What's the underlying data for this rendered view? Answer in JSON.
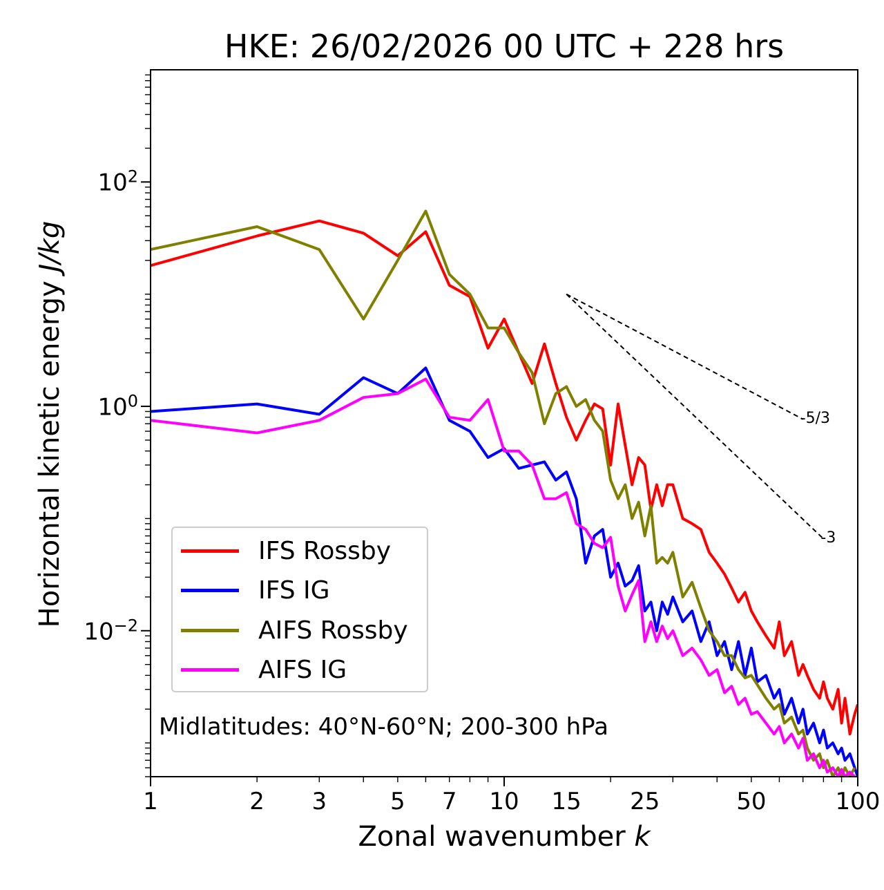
{
  "chart_data": {
    "type": "line",
    "title": "HKE: 26/02/2026 00 UTC + 228 hrs",
    "xlabel": "Zonal wavenumber",
    "xlabel_var": "k",
    "ylabel": "Horizontal kinetic energy",
    "ylabel_unit": "J/kg",
    "xscale": "log",
    "yscale": "log",
    "xlim": [
      1,
      100
    ],
    "ylim": [
      0.0005,
      1000
    ],
    "x_ticks": [
      1,
      2,
      3,
      5,
      7,
      10,
      15,
      25,
      50,
      100
    ],
    "x_tick_labels": [
      "1",
      "2",
      "3",
      "5",
      "7",
      "10",
      "15",
      "25",
      "50",
      "100"
    ],
    "y_ticks": [
      0.01,
      1,
      100
    ],
    "y_tick_labels": [
      {
        "base": "10",
        "exp": "−2"
      },
      {
        "base": "10",
        "exp": "0"
      },
      {
        "base": "10",
        "exp": "2"
      }
    ],
    "annotation": "Midlatitudes: 40°N-60°N; 200-300 hPa",
    "legend_position": "lower-left",
    "reference_slopes": [
      {
        "label": "-5/3",
        "slope": -1.6667,
        "x_start": 15,
        "y_start": 10,
        "x_end": 70
      },
      {
        "label": "-3",
        "slope": -3,
        "x_start": 15,
        "y_start": 10,
        "x_end": 80
      }
    ],
    "series": [
      {
        "name": "IFS Rossby",
        "color": "#ff0000",
        "x": [
          1,
          2,
          3,
          4,
          5,
          6,
          7,
          8,
          9,
          10,
          12,
          13,
          14,
          15,
          16,
          17,
          18,
          19,
          20,
          21,
          22,
          23,
          24,
          25,
          26,
          27,
          28,
          29,
          30,
          32,
          34,
          36,
          38,
          40,
          42,
          44,
          46,
          48,
          50,
          52,
          55,
          58,
          60,
          62,
          65,
          68,
          70,
          72,
          75,
          78,
          80,
          82,
          85,
          88,
          90,
          92,
          95,
          98,
          100
        ],
        "y": [
          18,
          33,
          45,
          35,
          22,
          36,
          12,
          9.5,
          3.3,
          6,
          1.6,
          3.6,
          1.6,
          0.8,
          0.5,
          0.75,
          1.05,
          0.95,
          0.3,
          1.05,
          0.45,
          0.2,
          0.35,
          0.3,
          0.12,
          0.2,
          0.13,
          0.2,
          0.2,
          0.1,
          0.09,
          0.08,
          0.05,
          0.04,
          0.032,
          0.024,
          0.018,
          0.022,
          0.015,
          0.012,
          0.009,
          0.007,
          0.012,
          0.006,
          0.008,
          0.004,
          0.005,
          0.004,
          0.003,
          0.0025,
          0.0035,
          0.0025,
          0.002,
          0.003,
          0.0015,
          0.0025,
          0.0012,
          0.0018,
          0.0022
        ]
      },
      {
        "name": "IFS IG",
        "color": "#0000ff",
        "x": [
          1,
          2,
          3,
          4,
          5,
          6,
          7,
          8,
          9,
          10,
          11,
          12,
          13,
          14,
          15,
          16,
          17,
          18,
          19,
          20,
          21,
          22,
          23,
          24,
          25,
          26,
          27,
          28,
          29,
          30,
          32,
          34,
          36,
          38,
          40,
          42,
          44,
          46,
          48,
          50,
          52,
          55,
          58,
          60,
          62,
          65,
          68,
          70,
          72,
          75,
          78,
          80,
          82,
          85,
          88,
          90,
          92,
          95,
          98,
          100
        ],
        "y": [
          0.9,
          1.05,
          0.85,
          1.8,
          1.3,
          2.2,
          0.75,
          0.6,
          0.35,
          0.42,
          0.28,
          0.3,
          0.32,
          0.22,
          0.26,
          0.15,
          0.04,
          0.07,
          0.08,
          0.03,
          0.04,
          0.025,
          0.028,
          0.038,
          0.015,
          0.018,
          0.01,
          0.018,
          0.014,
          0.02,
          0.012,
          0.015,
          0.008,
          0.012,
          0.006,
          0.008,
          0.0045,
          0.008,
          0.004,
          0.007,
          0.0035,
          0.004,
          0.0025,
          0.003,
          0.0018,
          0.0025,
          0.0015,
          0.002,
          0.0012,
          0.0015,
          0.001,
          0.0013,
          0.0009,
          0.001,
          0.0008,
          0.0009,
          0.0007,
          0.0008,
          0.0006,
          0.0005
        ]
      },
      {
        "name": "AIFS Rossby",
        "color": "#808000",
        "x": [
          1,
          2,
          3,
          4,
          5,
          6,
          7,
          8,
          9,
          10,
          11,
          12,
          13,
          14,
          15,
          16,
          17,
          18,
          19,
          20,
          21,
          22,
          23,
          24,
          25,
          26,
          27,
          28,
          29,
          30,
          32,
          34,
          36,
          38,
          40,
          42,
          44,
          46,
          48,
          50,
          52,
          55,
          58,
          60,
          62,
          65,
          68,
          70,
          72,
          75,
          78,
          80,
          82,
          85,
          88,
          90,
          92,
          95,
          98
        ],
        "y": [
          25,
          40,
          25,
          6,
          20,
          55,
          15,
          10,
          5,
          5,
          3,
          2,
          0.7,
          1.3,
          1.5,
          1.0,
          1.15,
          0.75,
          0.6,
          0.22,
          0.15,
          0.2,
          0.1,
          0.14,
          0.07,
          0.13,
          0.04,
          0.045,
          0.04,
          0.05,
          0.02,
          0.027,
          0.016,
          0.01,
          0.008,
          0.006,
          0.006,
          0.0045,
          0.0038,
          0.004,
          0.0033,
          0.0025,
          0.002,
          0.0022,
          0.0015,
          0.0017,
          0.0012,
          0.0013,
          0.0009,
          0.0007,
          0.0008,
          0.0006,
          0.0007,
          0.0005,
          0.0006,
          0.0005,
          0.0006,
          0.0005,
          0.0006
        ]
      },
      {
        "name": "AIFS IG",
        "color": "#ff00ff",
        "x": [
          1,
          2,
          3,
          4,
          5,
          6,
          7,
          8,
          9,
          10,
          11,
          12,
          13,
          14,
          15,
          16,
          17,
          18,
          19,
          20,
          21,
          22,
          23,
          24,
          25,
          26,
          27,
          28,
          29,
          30,
          32,
          34,
          36,
          38,
          40,
          42,
          44,
          46,
          48,
          50,
          52,
          55,
          58,
          60,
          62,
          65,
          68,
          70,
          72,
          75,
          78,
          80,
          82,
          85,
          88,
          90,
          92,
          95,
          98
        ],
        "y": [
          0.75,
          0.58,
          0.75,
          1.2,
          1.3,
          1.75,
          0.8,
          0.75,
          1.15,
          0.4,
          0.4,
          0.3,
          0.15,
          0.15,
          0.17,
          0.09,
          0.08,
          0.06,
          0.055,
          0.068,
          0.025,
          0.015,
          0.021,
          0.028,
          0.008,
          0.012,
          0.008,
          0.011,
          0.0085,
          0.01,
          0.006,
          0.007,
          0.0055,
          0.004,
          0.0045,
          0.0028,
          0.0032,
          0.0022,
          0.0025,
          0.0018,
          0.0019,
          0.0015,
          0.0012,
          0.0014,
          0.001,
          0.0012,
          0.0009,
          0.0011,
          0.0007,
          0.0008,
          0.0006,
          0.0007,
          0.00055,
          0.0006,
          0.0005,
          0.00058,
          0.0005,
          0.00055,
          0.0005
        ]
      }
    ]
  }
}
